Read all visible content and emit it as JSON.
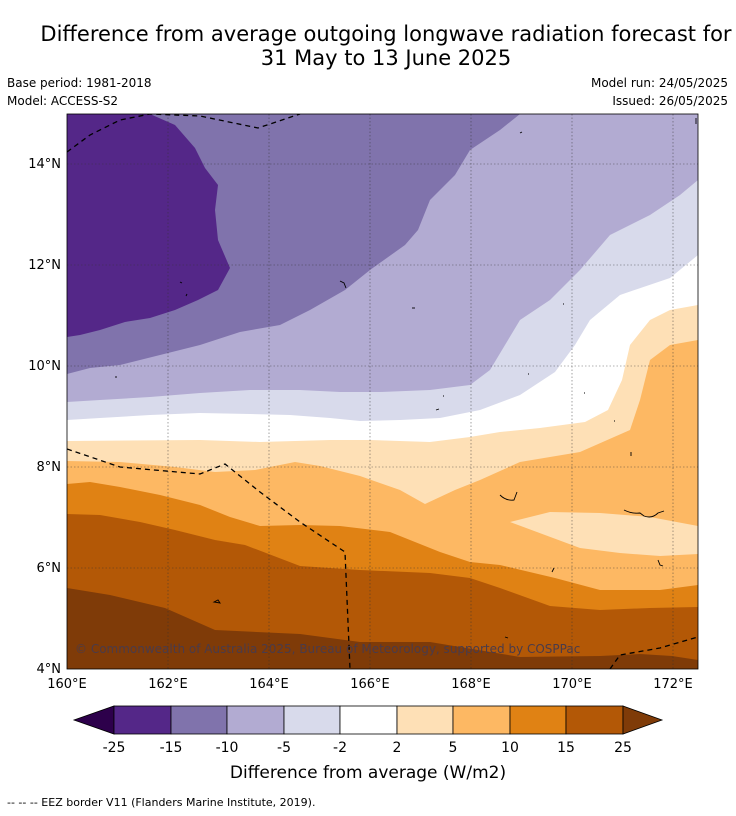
{
  "title": {
    "line1": "Difference from average outgoing longwave radiation forecast for",
    "line2": "31 May to 13 June 2025"
  },
  "meta": {
    "base_period": "Base period: 1981-2018",
    "model": "Model: ACCESS-S2",
    "model_run": "Model run: 24/05/2025",
    "issued": "Issued: 26/05/2025"
  },
  "axes": {
    "lon_labels": [
      "160°E",
      "162°E",
      "164°E",
      "166°E",
      "168°E",
      "170°E",
      "172°E"
    ],
    "lat_labels": [
      "14°N",
      "12°N",
      "10°N",
      "8°N",
      "6°N",
      "4°N"
    ]
  },
  "copyright": "© Commonwealth of Australia 2025, Bureau of Meteorology, supported by COSPPac",
  "colorbar": {
    "label": "Difference from average (W/m2)",
    "ticks": [
      "-25",
      "-15",
      "-10",
      "-5",
      "-2",
      "2",
      "5",
      "10",
      "15",
      "25"
    ],
    "colors": {
      "below_-25": "#2d004b",
      "-25_-15": "#542788",
      "-15_-10": "#8073ac",
      "-10_-5": "#b2abd2",
      "-5_-2": "#d8daeb",
      "-2_2": "#ffffff",
      "2_5": "#fee0b6",
      "5_10": "#fdb863",
      "10_15": "#e08214",
      "15_25": "#b35806",
      "above_25": "#7f3b08"
    }
  },
  "footnote": "-- -- -- EEZ border V11 (Flanders Marine Institute, 2019)."
}
